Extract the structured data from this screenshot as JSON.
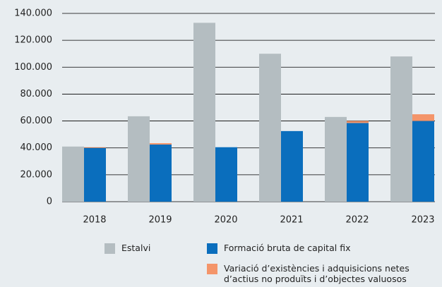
{
  "chart_data": {
    "type": "bar",
    "categories": [
      "2018",
      "2019",
      "2020",
      "2021",
      "2022",
      "2023"
    ],
    "series": [
      {
        "name": "Estalvi",
        "color": "#b4bdc1",
        "values": [
          41000,
          63500,
          133000,
          110000,
          63000,
          108000
        ]
      },
      {
        "name": "Formació bruta de capital fix",
        "color": "#0a6ebd",
        "values": [
          40000,
          42500,
          40500,
          52500,
          58500,
          60000
        ]
      },
      {
        "name": "Variació d’existències i adquisicions netes d’actius no produïts i d’objectes valuosos",
        "color": "#f4956a",
        "values": [
          500,
          1000,
          0,
          0,
          1500,
          5000
        ]
      }
    ],
    "ylim": [
      0,
      140000
    ],
    "yticks": [
      0,
      {
        "value": 20000,
        "label": "20.000"
      },
      {
        "value": 40000,
        "label": "40.000"
      },
      {
        "value": 60000,
        "label": "60.000"
      },
      {
        "value": 80000,
        "label": "80.000"
      },
      {
        "value": 100000,
        "label": "100.000"
      },
      {
        "value": 120000,
        "label": "120.000"
      },
      {
        "value": 140000,
        "label": "140.000"
      }
    ],
    "grid": true
  }
}
